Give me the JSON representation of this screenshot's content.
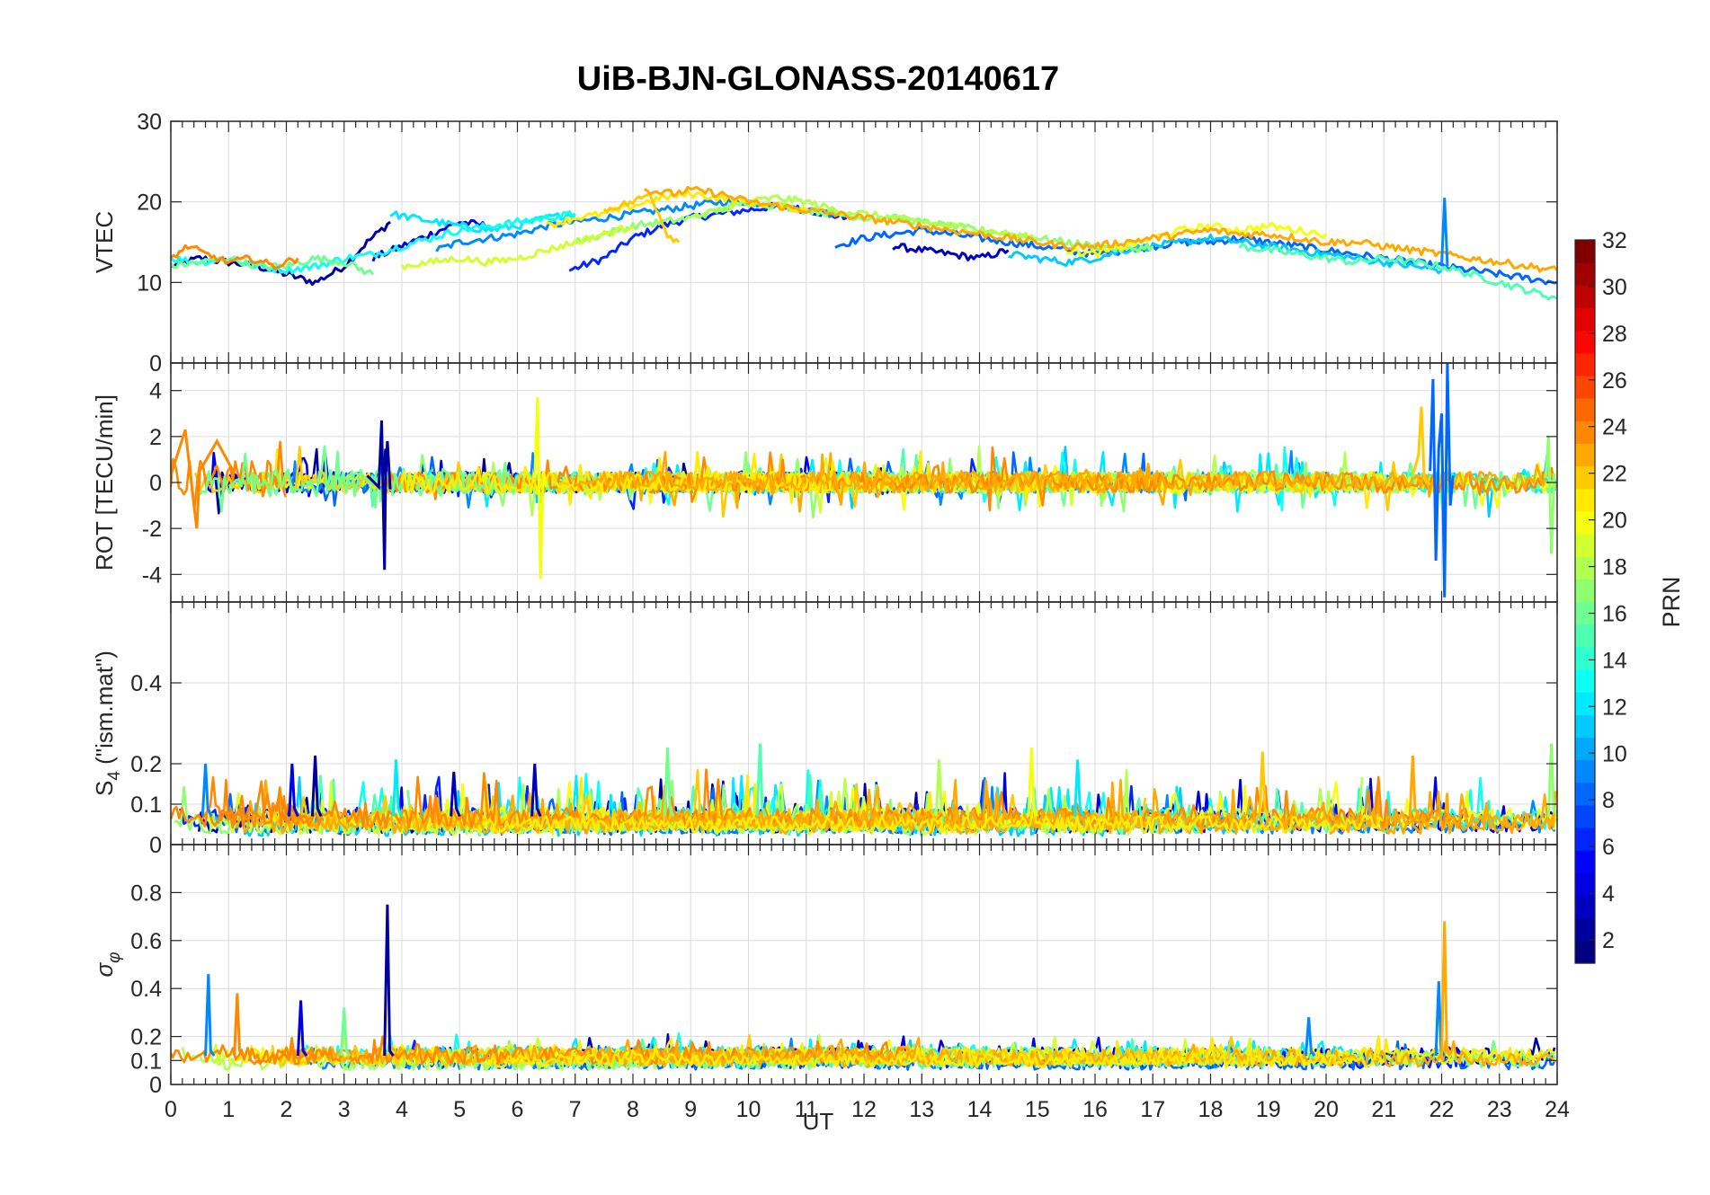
{
  "title": "UiB-BJN-GLONASS-20140617",
  "xlabel": "UT",
  "xlim": [
    0,
    24
  ],
  "xticks": [
    0,
    1,
    2,
    3,
    4,
    5,
    6,
    7,
    8,
    9,
    10,
    11,
    12,
    13,
    14,
    15,
    16,
    17,
    18,
    19,
    20,
    21,
    22,
    23,
    24
  ],
  "colorbar": {
    "label": "PRN",
    "lim": [
      1,
      32
    ],
    "ticks": [
      2,
      4,
      6,
      8,
      10,
      12,
      14,
      16,
      18,
      20,
      22,
      24,
      26,
      28,
      30,
      32
    ],
    "colormap": "jet",
    "levels": 32
  },
  "grid": true,
  "chart_data": [
    {
      "type": "line",
      "ylabel": "VTEC",
      "ylim": [
        0,
        30
      ],
      "yticks": [
        0,
        10,
        20,
        30
      ],
      "ytick_labels": [
        "0",
        "10",
        "20",
        "30"
      ],
      "series": [
        {
          "prn": 2,
          "x": [
            0,
            0.5,
            1,
            1.5,
            2,
            2.5,
            3,
            3.4,
            3.8
          ],
          "y": [
            12,
            13,
            12.5,
            12,
            11,
            10,
            12,
            15,
            17.5
          ]
        },
        {
          "prn": 6,
          "x": [
            6.9,
            7.5,
            8,
            8.5,
            9,
            9.5,
            10,
            10.5,
            11,
            11.7
          ],
          "y": [
            11.5,
            13,
            15.5,
            17,
            18,
            18.5,
            19,
            19.5,
            19,
            18
          ]
        },
        {
          "prn": 4,
          "x": [
            3.5,
            4,
            4.5,
            5,
            5.5
          ],
          "y": [
            13,
            14.5,
            16,
            17.5,
            17
          ]
        },
        {
          "prn": 3,
          "x": [
            12.5,
            13,
            13.5,
            14,
            14.5
          ],
          "y": [
            14.5,
            14,
            13.5,
            13,
            14
          ]
        },
        {
          "prn": 9,
          "x": [
            4.6,
            5,
            5.5,
            6,
            6.5,
            7,
            7.5,
            8,
            8.5,
            9,
            9.5,
            10,
            10.5,
            11,
            11.5
          ],
          "y": [
            14,
            15,
            15.5,
            16,
            17,
            17.5,
            18,
            18.5,
            19,
            19.5,
            20,
            20,
            19.5,
            19,
            18.5
          ]
        },
        {
          "prn": 8,
          "x": [
            11.5,
            12,
            12.5,
            13,
            13.5,
            14,
            14.5,
            15,
            15.5,
            16,
            16.5,
            17,
            17.5,
            18,
            18.5,
            19,
            19.5,
            20,
            20.5,
            21,
            21.5,
            22,
            22.5,
            23,
            23.5,
            24
          ],
          "y": [
            14.5,
            15.5,
            16,
            16.5,
            16,
            15.5,
            15,
            14.5,
            14,
            13.5,
            14,
            14.5,
            15,
            15,
            15.5,
            15,
            14.5,
            14,
            13.5,
            13,
            12.5,
            12,
            11.5,
            11,
            10.5,
            10
          ]
        },
        {
          "prn": 12,
          "x": [
            3.8,
            4.2,
            4.6,
            5,
            5.5,
            6,
            6.5,
            7
          ],
          "y": [
            18.5,
            18,
            17.5,
            17,
            16.5,
            17,
            18,
            18.5
          ]
        },
        {
          "prn": 13,
          "x": [
            0,
            0.5,
            1,
            1.5,
            2,
            2.5,
            3,
            3.5,
            4,
            4.5,
            5,
            5.5,
            6,
            6.5,
            7
          ],
          "y": [
            13,
            12.5,
            13,
            12,
            11.5,
            12,
            13,
            13.5,
            14.5,
            15.5,
            16.5,
            17,
            17.5,
            18,
            18.5
          ]
        },
        {
          "prn": 11,
          "x": [
            14.5,
            15,
            15.5,
            16,
            16.5,
            17,
            17.5,
            18,
            18.5,
            19,
            19.5,
            20,
            20.5,
            21,
            21.5,
            22
          ],
          "y": [
            13.5,
            13,
            12.5,
            13,
            14,
            14.5,
            15,
            15.5,
            15,
            14.5,
            14,
            13.5,
            13,
            12.5,
            12,
            11.5
          ]
        },
        {
          "prn": 16,
          "x": [
            0,
            0.5,
            1,
            1.5,
            2,
            2.5,
            3,
            3.5
          ],
          "y": [
            12,
            12.5,
            13,
            12,
            12,
            13,
            12.5,
            11
          ]
        },
        {
          "prn": 15,
          "x": [
            18.5,
            19,
            19.5,
            20,
            20.5,
            21,
            21.5,
            22,
            22.5,
            23,
            23.5,
            24
          ],
          "y": [
            14.5,
            14,
            13.5,
            13,
            12.5,
            13,
            12.5,
            12,
            11,
            10,
            9,
            8
          ]
        },
        {
          "prn": 17,
          "x": [
            7,
            7.5,
            8,
            8.5,
            9,
            9.5,
            10,
            10.5,
            11,
            11.5,
            12,
            12.5,
            13,
            13.5,
            14,
            14.5,
            15,
            15.5,
            16,
            16.5,
            17
          ],
          "y": [
            15,
            16,
            17,
            17.5,
            18,
            19,
            20,
            19.5,
            19,
            18.5,
            18,
            18,
            17.5,
            17,
            16.5,
            16,
            15.5,
            15,
            14.5,
            14,
            14.5
          ]
        },
        {
          "prn": 18,
          "x": [
            9,
            9.5,
            10,
            10.5,
            11,
            11.5,
            12,
            12.5,
            13,
            13.5,
            14,
            14.5,
            15
          ],
          "y": [
            18,
            19,
            20,
            20.5,
            20,
            19,
            18.5,
            18,
            17.5,
            17,
            16.5,
            16,
            15.5
          ]
        },
        {
          "prn": 19,
          "x": [
            4,
            4.5,
            5,
            5.5,
            6,
            6.5,
            7,
            7.5,
            8
          ],
          "y": [
            12,
            12.5,
            13,
            12.5,
            13,
            14,
            15,
            16,
            17
          ]
        },
        {
          "prn": 20,
          "x": [
            15.5,
            16,
            16.5,
            17,
            17.5,
            18,
            18.5,
            19,
            19.5,
            20
          ],
          "y": [
            14,
            13.5,
            14.5,
            15.5,
            16.5,
            17,
            16.5,
            17,
            16.5,
            16
          ]
        },
        {
          "prn": 21,
          "x": [
            6.5,
            7,
            7.5,
            8,
            8.5,
            9,
            9.5,
            10,
            10.5,
            11
          ],
          "y": [
            17,
            18,
            18.5,
            19.5,
            20.5,
            21,
            20.5,
            20,
            19.5,
            19
          ]
        },
        {
          "prn": 22,
          "x": [
            7.5,
            8,
            8.3,
            8.6,
            8.8
          ],
          "y": [
            19,
            20,
            21,
            16,
            15
          ]
        },
        {
          "prn": 23,
          "x": [
            8.2,
            8.7,
            9,
            9.5,
            10,
            10.5,
            11,
            11.5,
            12,
            12.5,
            13,
            13.5,
            14,
            14.5,
            15,
            15.5,
            16,
            16.5,
            17,
            17.5,
            18,
            18.5,
            19,
            19.5,
            20,
            20.5,
            21,
            21.5,
            22,
            22.5,
            23,
            23.5,
            24
          ],
          "y": [
            21.5,
            21,
            21.5,
            21,
            20,
            19.5,
            19,
            18.5,
            18,
            17.5,
            17,
            16.5,
            16,
            15.5,
            15,
            14.5,
            14.5,
            15,
            15.5,
            16,
            16.5,
            16,
            16,
            15.5,
            15,
            15,
            14.5,
            14,
            13.5,
            13,
            12.5,
            12,
            11.5
          ]
        },
        {
          "prn": 24,
          "x": [
            0,
            0.3,
            0.6,
            1,
            1.4,
            1.8,
            2.2
          ],
          "y": [
            13,
            14.5,
            13.5,
            12.5,
            13,
            12,
            13
          ]
        }
      ]
    },
    {
      "type": "line",
      "ylabel": "ROT [TECU/min]",
      "ylim": [
        -5.2,
        5.2
      ],
      "yticks": [
        -4,
        -2,
        0,
        2,
        4
      ],
      "ytick_labels": [
        "-4",
        "-2",
        "0",
        "2",
        "4"
      ],
      "series": [
        {
          "prn": 2,
          "x": [
            3.4,
            3.6,
            3.65,
            3.7,
            3.72,
            3.75,
            3.8
          ],
          "y": [
            0.3,
            -0.2,
            2.7,
            -3.8,
            0.4,
            1.8,
            -0.3
          ]
        },
        {
          "prn": 8,
          "x": [
            21.8,
            21.85,
            21.9,
            21.95,
            22.0,
            22.05,
            22.1,
            22.15,
            22.2
          ],
          "y": [
            0.5,
            4.5,
            -3.4,
            1.5,
            3.0,
            -5,
            5.2,
            -1.0,
            0.3
          ]
        },
        {
          "prn": 20,
          "x": [
            6.3,
            6.35,
            6.4,
            6.45,
            6.5
          ],
          "y": [
            0.2,
            3.7,
            -4.2,
            0.5,
            -0.2
          ]
        },
        {
          "prn": 22,
          "x": [
            21.5,
            21.6,
            21.65,
            21.7,
            21.8
          ],
          "y": [
            0.3,
            1.2,
            3.3,
            0.2,
            -0.1
          ]
        },
        {
          "prn": 17,
          "x": [
            23.8,
            23.85,
            23.9,
            23.95
          ],
          "y": [
            0.2,
            2.0,
            -3.1,
            0.4
          ]
        },
        {
          "prn": 24,
          "x": [
            0,
            0.25,
            0.4,
            0.45,
            0.5,
            0.8,
            1.1
          ],
          "y": [
            0.3,
            2.3,
            -1.0,
            -2.0,
            0.5,
            1.8,
            0.4
          ]
        }
      ]
    },
    {
      "type": "line",
      "ylabel": "S4 (\"ism.mat\")",
      "ylabel_main": "S",
      "ylabel_sub": "4",
      "ylabel_rest": " (\"ism.mat\")",
      "ylim": [
        0,
        0.6
      ],
      "yticks": [
        0,
        0.1,
        0.2,
        0.4
      ],
      "ytick_labels": [
        "0",
        "0.1",
        "0.2",
        "0.4"
      ],
      "peaks": [
        {
          "prn": 9,
          "x": 0.6,
          "y": 0.2
        },
        {
          "prn": 4,
          "x": 2.1,
          "y": 0.2
        },
        {
          "prn": 2,
          "x": 2.5,
          "y": 0.22
        },
        {
          "prn": 12,
          "x": 3.9,
          "y": 0.21
        },
        {
          "prn": 3,
          "x": 4.9,
          "y": 0.18
        },
        {
          "prn": 3,
          "x": 6.3,
          "y": 0.2
        },
        {
          "prn": 16,
          "x": 8.6,
          "y": 0.24
        },
        {
          "prn": 15,
          "x": 10.2,
          "y": 0.25
        },
        {
          "prn": 18,
          "x": 13.3,
          "y": 0.21
        },
        {
          "prn": 20,
          "x": 14.9,
          "y": 0.24
        },
        {
          "prn": 12,
          "x": 15.7,
          "y": 0.21
        },
        {
          "prn": 22,
          "x": 18.9,
          "y": 0.23
        },
        {
          "prn": 23,
          "x": 21.5,
          "y": 0.22
        },
        {
          "prn": 17,
          "x": 23.9,
          "y": 0.25
        }
      ]
    },
    {
      "type": "line",
      "ylabel": "σφ",
      "ylabel_main": "σ",
      "ylabel_sub": "φ",
      "ylim": [
        0,
        1
      ],
      "yticks": [
        0,
        0.1,
        0.2,
        0.4,
        0.6,
        0.8
      ],
      "ytick_labels": [
        "0",
        "0.1",
        "0.2",
        "0.4",
        "0.6",
        "0.8"
      ],
      "peaks": [
        {
          "prn": 9,
          "x": 0.65,
          "y": 0.46
        },
        {
          "prn": 24,
          "x": 1.15,
          "y": 0.38
        },
        {
          "prn": 4,
          "x": 2.25,
          "y": 0.35
        },
        {
          "prn": 16,
          "x": 3.0,
          "y": 0.32
        },
        {
          "prn": 2,
          "x": 3.75,
          "y": 0.75
        },
        {
          "prn": 9,
          "x": 19.7,
          "y": 0.28
        },
        {
          "prn": 9,
          "x": 21.95,
          "y": 0.43
        },
        {
          "prn": 23,
          "x": 22.05,
          "y": 0.68
        }
      ]
    }
  ]
}
